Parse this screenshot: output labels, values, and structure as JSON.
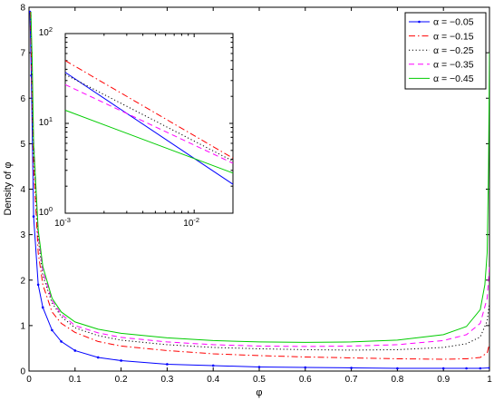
{
  "chart_data": [
    {
      "type": "line",
      "ylabel": "Density of φ",
      "xlabel": "φ",
      "xlim": [
        0,
        1
      ],
      "ylim": [
        0,
        8
      ],
      "x_ticks": [
        "0",
        "0.1",
        "0.2",
        "0.3",
        "0.4",
        "0.5",
        "0.6",
        "0.7",
        "0.8",
        "0.9",
        "1"
      ],
      "y_ticks": [
        "0",
        "1",
        "2",
        "3",
        "4",
        "5",
        "6",
        "7",
        "8"
      ],
      "grid": false,
      "legend_position": "top-right",
      "series": [
        {
          "name": "α = −0.05",
          "color": "#0000ff",
          "style": "solid-with-markers",
          "x": [
            0.002,
            0.005,
            0.01,
            0.02,
            0.03,
            0.05,
            0.07,
            0.1,
            0.15,
            0.2,
            0.3,
            0.4,
            0.5,
            0.6,
            0.7,
            0.8,
            0.9,
            0.95,
            0.98,
            1.0
          ],
          "y": [
            7.9,
            6.5,
            3.4,
            1.9,
            1.4,
            0.9,
            0.65,
            0.45,
            0.3,
            0.23,
            0.15,
            0.12,
            0.09,
            0.08,
            0.07,
            0.06,
            0.06,
            0.06,
            0.06,
            0.07
          ]
        },
        {
          "name": "α = −0.15",
          "color": "#ff0000",
          "style": "dash-dot",
          "x": [
            0.003,
            0.006,
            0.01,
            0.02,
            0.03,
            0.05,
            0.07,
            0.1,
            0.15,
            0.2,
            0.3,
            0.4,
            0.5,
            0.6,
            0.7,
            0.8,
            0.9,
            0.95,
            0.98,
            0.995,
            1.0
          ],
          "y": [
            7.9,
            6.4,
            4.5,
            2.6,
            1.9,
            1.3,
            1.05,
            0.85,
            0.65,
            0.55,
            0.45,
            0.38,
            0.34,
            0.31,
            0.29,
            0.27,
            0.26,
            0.27,
            0.3,
            0.4,
            0.6
          ]
        },
        {
          "name": "α = −0.25",
          "color": "#000000",
          "style": "dotted",
          "x": [
            0.004,
            0.007,
            0.01,
            0.02,
            0.03,
            0.05,
            0.07,
            0.1,
            0.15,
            0.2,
            0.3,
            0.4,
            0.5,
            0.6,
            0.7,
            0.8,
            0.9,
            0.95,
            0.98,
            0.995,
            1.0
          ],
          "y": [
            7.9,
            6.0,
            4.8,
            2.9,
            2.1,
            1.5,
            1.2,
            0.95,
            0.78,
            0.68,
            0.58,
            0.52,
            0.49,
            0.47,
            0.46,
            0.47,
            0.52,
            0.6,
            0.75,
            1.1,
            1.5
          ]
        },
        {
          "name": "α = −0.35",
          "color": "#ff00ff",
          "style": "dashed",
          "x": [
            0.004,
            0.007,
            0.01,
            0.02,
            0.03,
            0.05,
            0.07,
            0.1,
            0.15,
            0.2,
            0.3,
            0.4,
            0.5,
            0.6,
            0.7,
            0.8,
            0.9,
            0.95,
            0.98,
            0.995,
            1.0
          ],
          "y": [
            7.9,
            6.3,
            5.1,
            3.0,
            2.2,
            1.55,
            1.25,
            1.0,
            0.84,
            0.74,
            0.64,
            0.58,
            0.55,
            0.54,
            0.55,
            0.58,
            0.67,
            0.8,
            1.05,
            1.6,
            2.3
          ]
        },
        {
          "name": "α = −0.45",
          "color": "#00cc00",
          "style": "solid",
          "x": [
            0.004,
            0.007,
            0.01,
            0.02,
            0.03,
            0.05,
            0.07,
            0.1,
            0.15,
            0.2,
            0.3,
            0.4,
            0.5,
            0.6,
            0.7,
            0.8,
            0.9,
            0.95,
            0.98,
            0.99,
            0.995,
            0.998,
            1.0
          ],
          "y": [
            7.9,
            6.8,
            5.0,
            3.1,
            2.3,
            1.6,
            1.3,
            1.08,
            0.92,
            0.83,
            0.73,
            0.67,
            0.64,
            0.63,
            0.64,
            0.68,
            0.8,
            0.98,
            1.35,
            1.9,
            2.6,
            4.5,
            7.0
          ]
        }
      ]
    },
    {
      "type": "line",
      "inset": true,
      "xscale": "log",
      "yscale": "log",
      "xlim": [
        0.001,
        0.02
      ],
      "ylim": [
        1,
        100
      ],
      "x_ticks": [
        {
          "base": "10",
          "exp": "-3"
        },
        {
          "base": "10",
          "exp": "-2"
        }
      ],
      "y_ticks": [
        {
          "base": "10",
          "exp": "0"
        },
        {
          "base": "10",
          "exp": "1"
        },
        {
          "base": "10",
          "exp": "2"
        }
      ],
      "series": [
        {
          "name": "α = −0.05",
          "color": "#0000ff",
          "style": "solid",
          "x": [
            0.001,
            0.02
          ],
          "y": [
            37,
            2.1
          ]
        },
        {
          "name": "α = −0.15",
          "color": "#ff0000",
          "style": "dash-dot",
          "x": [
            0.001,
            0.02
          ],
          "y": [
            50,
            4.1
          ]
        },
        {
          "name": "α = −0.25",
          "color": "#000000",
          "style": "dotted",
          "x": [
            0.001,
            0.02
          ],
          "y": [
            35,
            3.8
          ]
        },
        {
          "name": "α = −0.35",
          "color": "#ff00ff",
          "style": "dashed",
          "x": [
            0.001,
            0.02
          ],
          "y": [
            27,
            3.6
          ]
        },
        {
          "name": "α = −0.45",
          "color": "#00cc00",
          "style": "solid",
          "x": [
            0.001,
            0.02
          ],
          "y": [
            14,
            2.8
          ]
        }
      ]
    }
  ]
}
